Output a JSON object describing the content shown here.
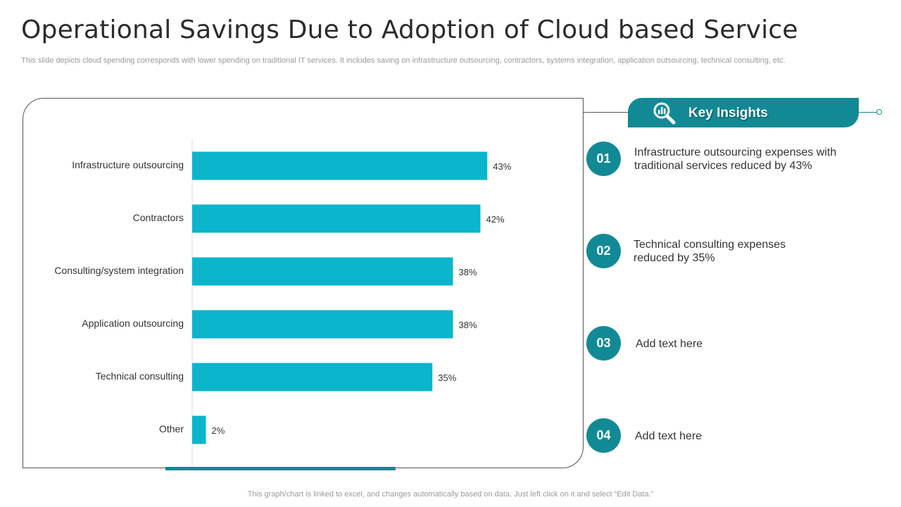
{
  "slide": {
    "title": "Operational Savings Due to Adoption  of Cloud based Service",
    "subtitle": "This slide depicts cloud spending corresponds with lower spending on traditional IT services. It includes saving on infrastructure outsourcing, contractors, systems integration, application outsourcing, technical consulting, etc.",
    "footer": "This graph/chart is linked to excel, and changes automatically based on data. Just left click on it and select “Edit Data.”"
  },
  "colors": {
    "bar": "#0bb5cc",
    "accent": "#128a96"
  },
  "chart_data": {
    "type": "bar",
    "orientation": "horizontal",
    "categories": [
      "Infrastructure outsourcing",
      "Contractors",
      "Consulting/system integration",
      "Application outsourcing",
      "Technical consulting",
      "Other"
    ],
    "values": [
      43,
      42,
      38,
      38,
      35,
      2
    ],
    "value_labels": [
      "43%",
      "42%",
      "38%",
      "38%",
      "35%",
      "2%"
    ],
    "xlim": [
      0,
      50
    ],
    "unit": "%",
    "grid": false,
    "legend": "none"
  },
  "key_insights": {
    "title": "Key Insights",
    "icon": "magnifier-chart-icon",
    "items": [
      {
        "num": "01",
        "text": "Infrastructure  outsourcing expenses with traditional services reduced by 43%"
      },
      {
        "num": "02",
        "text": "Technical consulting expenses reduced by 35%"
      },
      {
        "num": "03",
        "text": "Add text here"
      },
      {
        "num": "04",
        "text": "Add text here"
      }
    ]
  }
}
